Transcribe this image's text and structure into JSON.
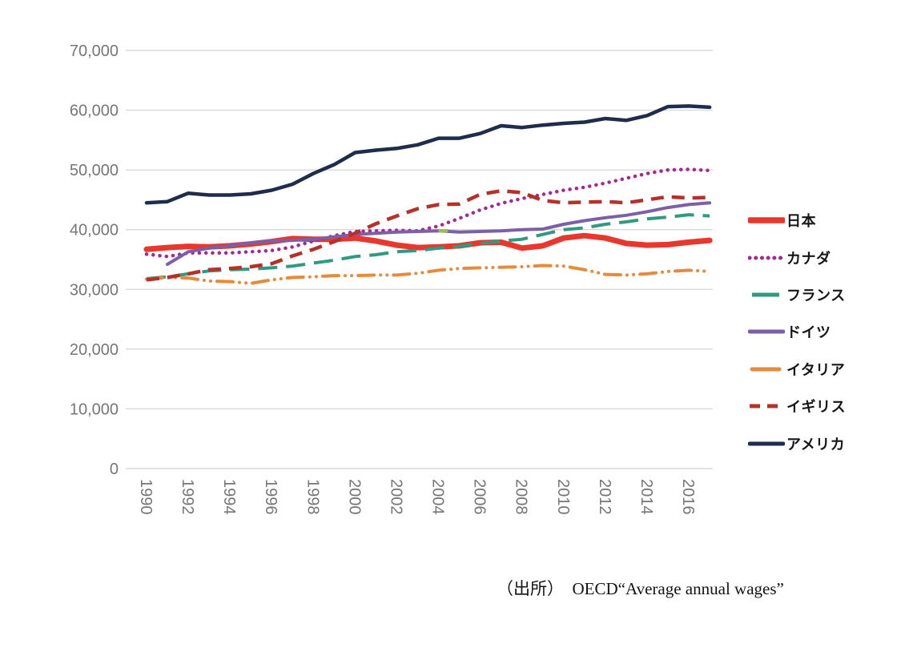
{
  "page": {
    "background": "#ffffff"
  },
  "source_note": "（出所）　OECD“Average annual wages”",
  "axis_colors": {
    "gridline": "#d9d9d9",
    "tick_label": "#767676"
  },
  "chart_data": {
    "type": "line",
    "title": "",
    "xlabel": "",
    "ylabel": "",
    "grid": "horizontal-only",
    "legend_position": "right",
    "ylim": [
      0,
      70000
    ],
    "y_tick_step": 10000,
    "y_tick_labels": [
      "0",
      "10,000",
      "20,000",
      "30,000",
      "40,000",
      "50,000",
      "60,000",
      "70,000"
    ],
    "x_range": [
      1990,
      2017
    ],
    "x_tick_labels": [
      "1990",
      "1992",
      "1994",
      "1996",
      "1998",
      "2000",
      "2002",
      "2004",
      "2006",
      "2008",
      "2010",
      "2012",
      "2014",
      "2016"
    ],
    "x_tick_years": [
      1990,
      1992,
      1994,
      1996,
      1998,
      2000,
      2002,
      2004,
      2006,
      2008,
      2010,
      2012,
      2014,
      2016
    ],
    "years": [
      1990,
      1991,
      1992,
      1993,
      1994,
      1995,
      1996,
      1997,
      1998,
      1999,
      2000,
      2001,
      2002,
      2003,
      2004,
      2005,
      2006,
      2007,
      2008,
      2009,
      2010,
      2011,
      2012,
      2013,
      2014,
      2015,
      2016,
      2017
    ],
    "series": [
      {
        "id": "japan",
        "label": "日本",
        "color": "#e8372c",
        "style": "solid",
        "width": 7,
        "values": [
          36700,
          37000,
          37200,
          37100,
          37300,
          37600,
          38000,
          38500,
          38400,
          38400,
          38600,
          38100,
          37400,
          37000,
          37100,
          37300,
          37800,
          37900,
          36900,
          37300,
          38600,
          39000,
          38600,
          37700,
          37400,
          37500,
          37900,
          38200
        ]
      },
      {
        "id": "canada",
        "label": "カナダ",
        "color": "#a12a96",
        "style": "dotted",
        "width": 4.5,
        "values": [
          35900,
          35500,
          36100,
          36100,
          36100,
          36300,
          36500,
          37100,
          38100,
          39000,
          39700,
          39800,
          39900,
          39800,
          40600,
          41900,
          43300,
          44400,
          45200,
          45900,
          46600,
          47100,
          47800,
          48600,
          49400,
          50000,
          50100,
          49900
        ]
      },
      {
        "id": "france",
        "label": "フランス",
        "color": "#2f9a80",
        "style": "longdash",
        "width": 4,
        "values": [
          31800,
          32100,
          32600,
          33100,
          33300,
          33400,
          33600,
          33900,
          34400,
          34900,
          35500,
          35800,
          36300,
          36500,
          36900,
          37200,
          37700,
          38100,
          38400,
          39200,
          40000,
          40300,
          40900,
          41300,
          41800,
          42100,
          42500,
          42300
        ]
      },
      {
        "id": "germany",
        "label": "ドイツ",
        "color": "#7d5fa8",
        "style": "solid",
        "width": 4,
        "values": [
          null,
          34200,
          36300,
          36900,
          37300,
          37800,
          38100,
          38200,
          38400,
          38800,
          39200,
          39400,
          39600,
          39700,
          39800,
          39600,
          39700,
          39800,
          40000,
          40100,
          40900,
          41500,
          42000,
          42400,
          43000,
          43700,
          44200,
          44500
        ]
      },
      {
        "id": "italy",
        "label": "イタリア",
        "color": "#e88a3c",
        "style": "dashdotdot",
        "width": 4,
        "values": [
          31700,
          32000,
          31900,
          31400,
          31300,
          31000,
          31600,
          32000,
          32100,
          32300,
          32300,
          32400,
          32400,
          32700,
          33200,
          33500,
          33600,
          33700,
          33800,
          34000,
          33900,
          33300,
          32500,
          32400,
          32600,
          33000,
          33200,
          33000
        ]
      },
      {
        "id": "uk",
        "label": "イギリス",
        "color": "#b5322a",
        "style": "dash",
        "width": 4.5,
        "values": [
          31600,
          32000,
          32600,
          33300,
          33500,
          33800,
          34300,
          35600,
          36700,
          38000,
          39400,
          41000,
          42300,
          43500,
          44200,
          44300,
          45900,
          46500,
          46200,
          44900,
          44500,
          44600,
          44700,
          44500,
          45000,
          45500,
          45300,
          45400
        ]
      },
      {
        "id": "usa",
        "label": "アメリカ",
        "color": "#1f2c4c",
        "style": "solid",
        "width": 4.5,
        "values": [
          44500,
          44700,
          46100,
          45800,
          45800,
          46000,
          46600,
          47600,
          49400,
          50900,
          52900,
          53300,
          53600,
          54200,
          55300,
          55300,
          56100,
          57400,
          57100,
          57500,
          57800,
          58000,
          58600,
          58300,
          59100,
          60600,
          60700,
          60500
        ]
      }
    ],
    "stray_mark": {
      "color": "#9bbb59",
      "year_start": 2004.0,
      "year_end": 2004.45,
      "value": 39800,
      "width": 4.5
    }
  }
}
